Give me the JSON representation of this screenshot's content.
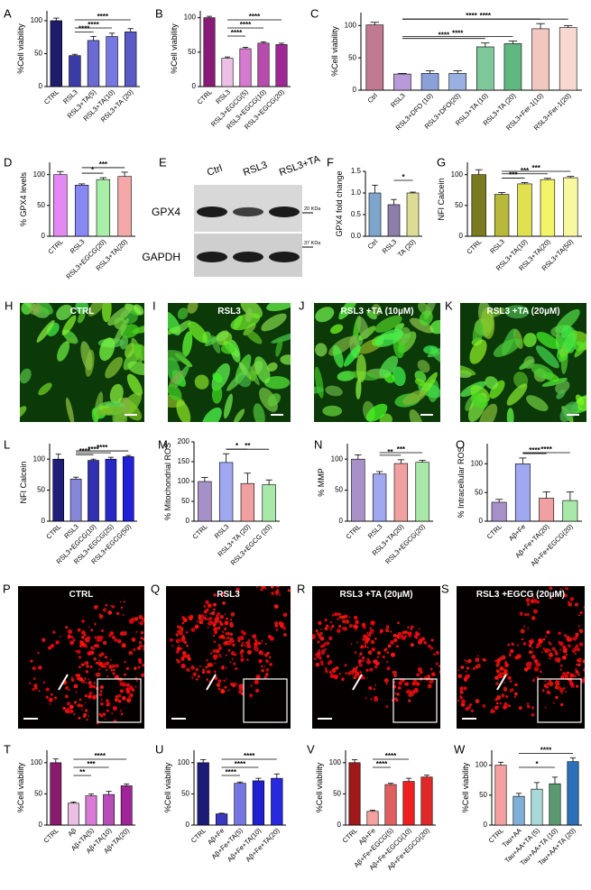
{
  "chart_data": [
    {
      "type": "bar",
      "panel": "A",
      "ylabel": "%Cell viability",
      "categories": [
        "CTRL",
        "RSL3",
        "RSL3+TA(5)",
        "RSL3+TA(10)",
        "RSL3+TA (20)"
      ],
      "values": [
        100,
        47,
        70,
        76,
        83
      ],
      "errors": [
        4,
        2,
        6,
        5,
        5
      ],
      "colors": [
        "#1c1c6b",
        "#3b3ba8",
        "#6a6ad2",
        "#7878e2",
        "#5a5ac6"
      ],
      "ylim": [
        0,
        115
      ],
      "yticks": [
        0,
        50,
        100
      ],
      "significance": [
        {
          "from": 1,
          "to": 4,
          "label": "****"
        },
        {
          "from": 1,
          "to": 3,
          "label": "****"
        },
        {
          "from": 1,
          "to": 2,
          "label": "****"
        }
      ]
    },
    {
      "type": "bar",
      "panel": "B",
      "ylabel": "%Cell viability",
      "categories": [
        "CTRL",
        "RSL3",
        "RSL3+EGCG(5)",
        "RSL3+EGCG(10)",
        "RSL3+EGCG(20)"
      ],
      "values": [
        100,
        41,
        55,
        63,
        61
      ],
      "errors": [
        2,
        2,
        2,
        2,
        2
      ],
      "colors": [
        "#8a1a78",
        "#ecc0e6",
        "#d67ad0",
        "#b84cae",
        "#a02896"
      ],
      "ylim": [
        0,
        110
      ],
      "yticks": [
        0,
        50,
        100
      ],
      "significance": [
        {
          "from": 1,
          "to": 4,
          "label": "****"
        },
        {
          "from": 1,
          "to": 3,
          "label": "****"
        },
        {
          "from": 1,
          "to": 2,
          "label": "****"
        }
      ]
    },
    {
      "type": "bar",
      "panel": "C",
      "ylabel": "%Cell viability",
      "categories": [
        "Ctrl",
        "RSL3",
        "RSL3+DFO (10)",
        "RSL3+DFO(20)",
        "RSL3+TA (10)",
        "RSL3+TA (20)",
        "RSL3+Fer-1(10)",
        "RSL3+Fer-1(20)"
      ],
      "values": [
        101,
        25,
        26,
        26,
        67,
        72,
        95,
        97
      ],
      "errors": [
        4,
        1,
        4,
        4,
        6,
        4,
        8,
        3
      ],
      "colors": [
        "#c07a92",
        "#b89ad8",
        "#8aa0d8",
        "#9ab0e0",
        "#7ec89a",
        "#60b880",
        "#f0c8c0",
        "#f8d8d0"
      ],
      "ylim": [
        0,
        120
      ],
      "yticks": [
        0,
        50,
        100
      ],
      "significance": [
        {
          "from": 1,
          "to": 7,
          "label": "****"
        },
        {
          "from": 1,
          "to": 6,
          "label": "****"
        },
        {
          "from": 1,
          "to": 5,
          "label": "****"
        },
        {
          "from": 1,
          "to": 4,
          "label": "****"
        }
      ]
    },
    {
      "type": "bar",
      "panel": "D",
      "ylabel": "% GPX4 levels",
      "categories": [
        "CTRL",
        "RSL3",
        "RSL3+EGCG(20)",
        "RSL3+TA(20)"
      ],
      "values": [
        100,
        83,
        92,
        97
      ],
      "errors": [
        5,
        2,
        3,
        7
      ],
      "colors": [
        "#e488f4",
        "#8888f2",
        "#a8f0a8",
        "#f4a8a8"
      ],
      "ylim": [
        0,
        120
      ],
      "yticks": [
        0,
        50,
        100
      ],
      "significance": [
        {
          "from": 1,
          "to": 3,
          "label": "***"
        },
        {
          "from": 1,
          "to": 2,
          "label": "*"
        }
      ]
    },
    {
      "type": "bar",
      "panel": "F",
      "ylabel": "GPX4 fold change",
      "categories": [
        "Ctrl",
        "RSL3",
        "TA (20)"
      ],
      "values": [
        1.0,
        0.73,
        1.0
      ],
      "errors": [
        0.18,
        0.12,
        0.02
      ],
      "colors": [
        "#7ea6cc",
        "#8c7eaa",
        "#dcdc94"
      ],
      "ylim": [
        0,
        1.5
      ],
      "yticks": [
        {
          "value": 0,
          "label": "0.0"
        },
        0.5,
        {
          "value": 1,
          "label": "1.0"
        },
        1.5
      ],
      "significance": [
        {
          "from": 1,
          "to": 2,
          "label": "*"
        }
      ]
    },
    {
      "type": "bar",
      "panel": "G",
      "ylabel": "NFI Calcein",
      "categories": [
        "CTRL",
        "RSL3",
        "RSL3+TA(10)",
        "RSL3+TA(20)",
        "RSL3+TA(50)"
      ],
      "values": [
        100,
        68,
        85,
        92,
        95
      ],
      "errors": [
        8,
        3,
        2,
        2,
        2
      ],
      "colors": [
        "#7a7a20",
        "#b8b83a",
        "#e0e050",
        "#f4f468",
        "#f8f8a0"
      ],
      "ylim": [
        0,
        120
      ],
      "yticks": [
        0,
        50,
        100
      ],
      "significance": [
        {
          "from": 1,
          "to": 4,
          "label": "***"
        },
        {
          "from": 1,
          "to": 3,
          "label": "***"
        },
        {
          "from": 1,
          "to": 2,
          "label": "***"
        }
      ]
    },
    {
      "type": "bar",
      "panel": "L",
      "ylabel": "NFI Calcein",
      "categories": [
        "CTRL",
        "RSL3",
        "RSL3+EGCG(10)",
        "RSL3+EGCG(25)",
        "RSL3+EGCG(50)"
      ],
      "values": [
        100,
        68,
        98,
        100,
        104
      ],
      "errors": [
        8,
        3,
        2,
        3,
        2
      ],
      "colors": [
        "#1e1e78",
        "#8686da",
        "#3030b0",
        "#2828c4",
        "#2020d8"
      ],
      "ylim": [
        0,
        125
      ],
      "yticks": [
        0,
        50,
        100
      ],
      "significance": [
        {
          "from": 1,
          "to": 4,
          "label": "****"
        },
        {
          "from": 1,
          "to": 3,
          "label": "****"
        },
        {
          "from": 1,
          "to": 2,
          "label": "****"
        }
      ]
    },
    {
      "type": "bar",
      "panel": "M",
      "ylabel": "% Mitochondrial ROS",
      "categories": [
        "CTRL",
        "RSL3",
        "RSL3+TA (20)",
        "RSL3+EGCG (20)"
      ],
      "values": [
        100,
        148,
        95,
        92
      ],
      "errors": [
        10,
        22,
        26,
        12
      ],
      "colors": [
        "#a690c8",
        "#a0a8f0",
        "#f0a0a0",
        "#a8e8a8"
      ],
      "ylim": [
        0,
        200
      ],
      "yticks": [
        0,
        50,
        100,
        150,
        200
      ],
      "significance": [
        {
          "from": 1,
          "to": 3,
          "label": "**"
        },
        {
          "from": 1,
          "to": 2,
          "label": "*"
        }
      ]
    },
    {
      "type": "bar",
      "panel": "N",
      "ylabel": "% MMP",
      "categories": [
        "CTRL",
        "RSL3",
        "RSL3+TA(20)",
        "RSL3+EGCG(20)"
      ],
      "values": [
        100,
        76,
        93,
        95
      ],
      "errors": [
        7,
        4,
        6,
        3
      ],
      "colors": [
        "#a890c8",
        "#a0a8f0",
        "#f0a0a0",
        "#a8e8a8"
      ],
      "ylim": [
        0,
        125
      ],
      "yticks": [
        0,
        50,
        100
      ],
      "significance": [
        {
          "from": 1,
          "to": 3,
          "label": "***"
        },
        {
          "from": 1,
          "to": 2,
          "label": "**"
        }
      ]
    },
    {
      "type": "bar",
      "panel": "O",
      "ylabel": "% Intracellular ROS",
      "categories": [
        "CTRL",
        "Aβ+Fe",
        "Aβ+Fe+TA(20)",
        "Aβ+Fe+EGCG(20)"
      ],
      "values": [
        33,
        100,
        40,
        36
      ],
      "errors": [
        5,
        10,
        11,
        15
      ],
      "colors": [
        "#a890c8",
        "#a0a8f0",
        "#f0a0a0",
        "#a8e8a8"
      ],
      "ylim": [
        0,
        135
      ],
      "yticks": [
        0,
        50,
        100
      ],
      "significance": [
        {
          "from": 1,
          "to": 3,
          "label": "****"
        },
        {
          "from": 1,
          "to": 2,
          "label": "****"
        }
      ]
    },
    {
      "type": "bar",
      "panel": "T",
      "ylabel": "%Cell viability",
      "categories": [
        "CTRL",
        "Aβ",
        "Aβ+TA(5)",
        "Aβ+TA(10)",
        "Aβ+TA(20)"
      ],
      "values": [
        100,
        35,
        47,
        49,
        63
      ],
      "errors": [
        6,
        2,
        3,
        5,
        3
      ],
      "colors": [
        "#8a1a6e",
        "#ecc0e6",
        "#d87ad6",
        "#b84cb8",
        "#a02498"
      ],
      "ylim": [
        0,
        120
      ],
      "yticks": [
        0,
        50,
        100
      ],
      "significance": [
        {
          "from": 1,
          "to": 4,
          "label": "****"
        },
        {
          "from": 1,
          "to": 3,
          "label": "***"
        },
        {
          "from": 1,
          "to": 2,
          "label": "**"
        }
      ]
    },
    {
      "type": "bar",
      "panel": "U",
      "ylabel": "%Cell viability",
      "categories": [
        "CTRL",
        "Aβ+Fe",
        "Aβ+Fe+TA(5)",
        "Aβ+Fe+TA(10)",
        "Aβ+Fe+TA(20)"
      ],
      "values": [
        100,
        18,
        67,
        71,
        75
      ],
      "errors": [
        5,
        1,
        2,
        4,
        7
      ],
      "colors": [
        "#1c1c78",
        "#3838c0",
        "#7676e2",
        "#2020d0",
        "#2828e0"
      ],
      "ylim": [
        0,
        120
      ],
      "yticks": [
        0,
        50,
        100
      ],
      "significance": [
        {
          "from": 1,
          "to": 4,
          "label": "****"
        },
        {
          "from": 1,
          "to": 3,
          "label": "****"
        },
        {
          "from": 1,
          "to": 2,
          "label": "****"
        }
      ]
    },
    {
      "type": "bar",
      "panel": "V",
      "ylabel": "%Cell viability",
      "categories": [
        "CTRL",
        "Aβ+Fe",
        "Aβ+Fe+EGCG(5)",
        "Aβ+Fe+EGCG(10)",
        "Aβ+Fe+EGCG(20)"
      ],
      "values": [
        100,
        22,
        65,
        70,
        77
      ],
      "errors": [
        5,
        2,
        2,
        5,
        3
      ],
      "colors": [
        "#a01818",
        "#f4a0a0",
        "#e06060",
        "#f02020",
        "#e02828"
      ],
      "ylim": [
        0,
        120
      ],
      "yticks": [
        0,
        50,
        100
      ],
      "significance": [
        {
          "from": 1,
          "to": 3,
          "label": "****"
        },
        {
          "from": 1,
          "to": 2,
          "label": "****"
        }
      ]
    },
    {
      "type": "bar",
      "panel": "W",
      "ylabel": "%Cell viability",
      "categories": [
        "CTRL",
        "Tau+AA",
        "Tau+AA+TA (5)",
        "Tau+AA+TA (10)",
        "Tau+AA+TA (20)"
      ],
      "values": [
        100,
        48,
        60,
        69,
        106
      ],
      "errors": [
        5,
        5,
        11,
        11,
        6
      ],
      "colors": [
        "#f4a0a0",
        "#7eb0d8",
        "#a8d8d8",
        "#5a9a70",
        "#2a70b8"
      ],
      "ylim": [
        0,
        125
      ],
      "yticks": [
        0,
        50,
        100
      ],
      "significance": [
        {
          "from": 1,
          "to": 4,
          "label": "****"
        },
        {
          "from": 1,
          "to": 3,
          "label": "*"
        }
      ]
    }
  ],
  "blot": {
    "panel": "E",
    "lanes": [
      "Ctrl",
      "RSL3",
      "RSL3+TA"
    ],
    "proteins": [
      "GPX4",
      "GAPDH"
    ],
    "markers": [
      "20 KDa",
      "37 KDa"
    ]
  },
  "image_panels": [
    {
      "panel": "H",
      "label": "CTRL",
      "tone": "green"
    },
    {
      "panel": "I",
      "label": "RSL3",
      "tone": "green"
    },
    {
      "panel": "J",
      "label": "RSL3 +TA (10µM)",
      "tone": "green"
    },
    {
      "panel": "K",
      "label": "RSL3 +TA (20µM)",
      "tone": "green"
    },
    {
      "panel": "P",
      "label": "CTRL",
      "tone": "red"
    },
    {
      "panel": "Q",
      "label": "RSL3",
      "tone": "red"
    },
    {
      "panel": "R",
      "label": "RSL3 +TA (20µM)",
      "tone": "red"
    },
    {
      "panel": "S",
      "label": "RSL3 +EGCG (20µM)",
      "tone": "red"
    }
  ]
}
